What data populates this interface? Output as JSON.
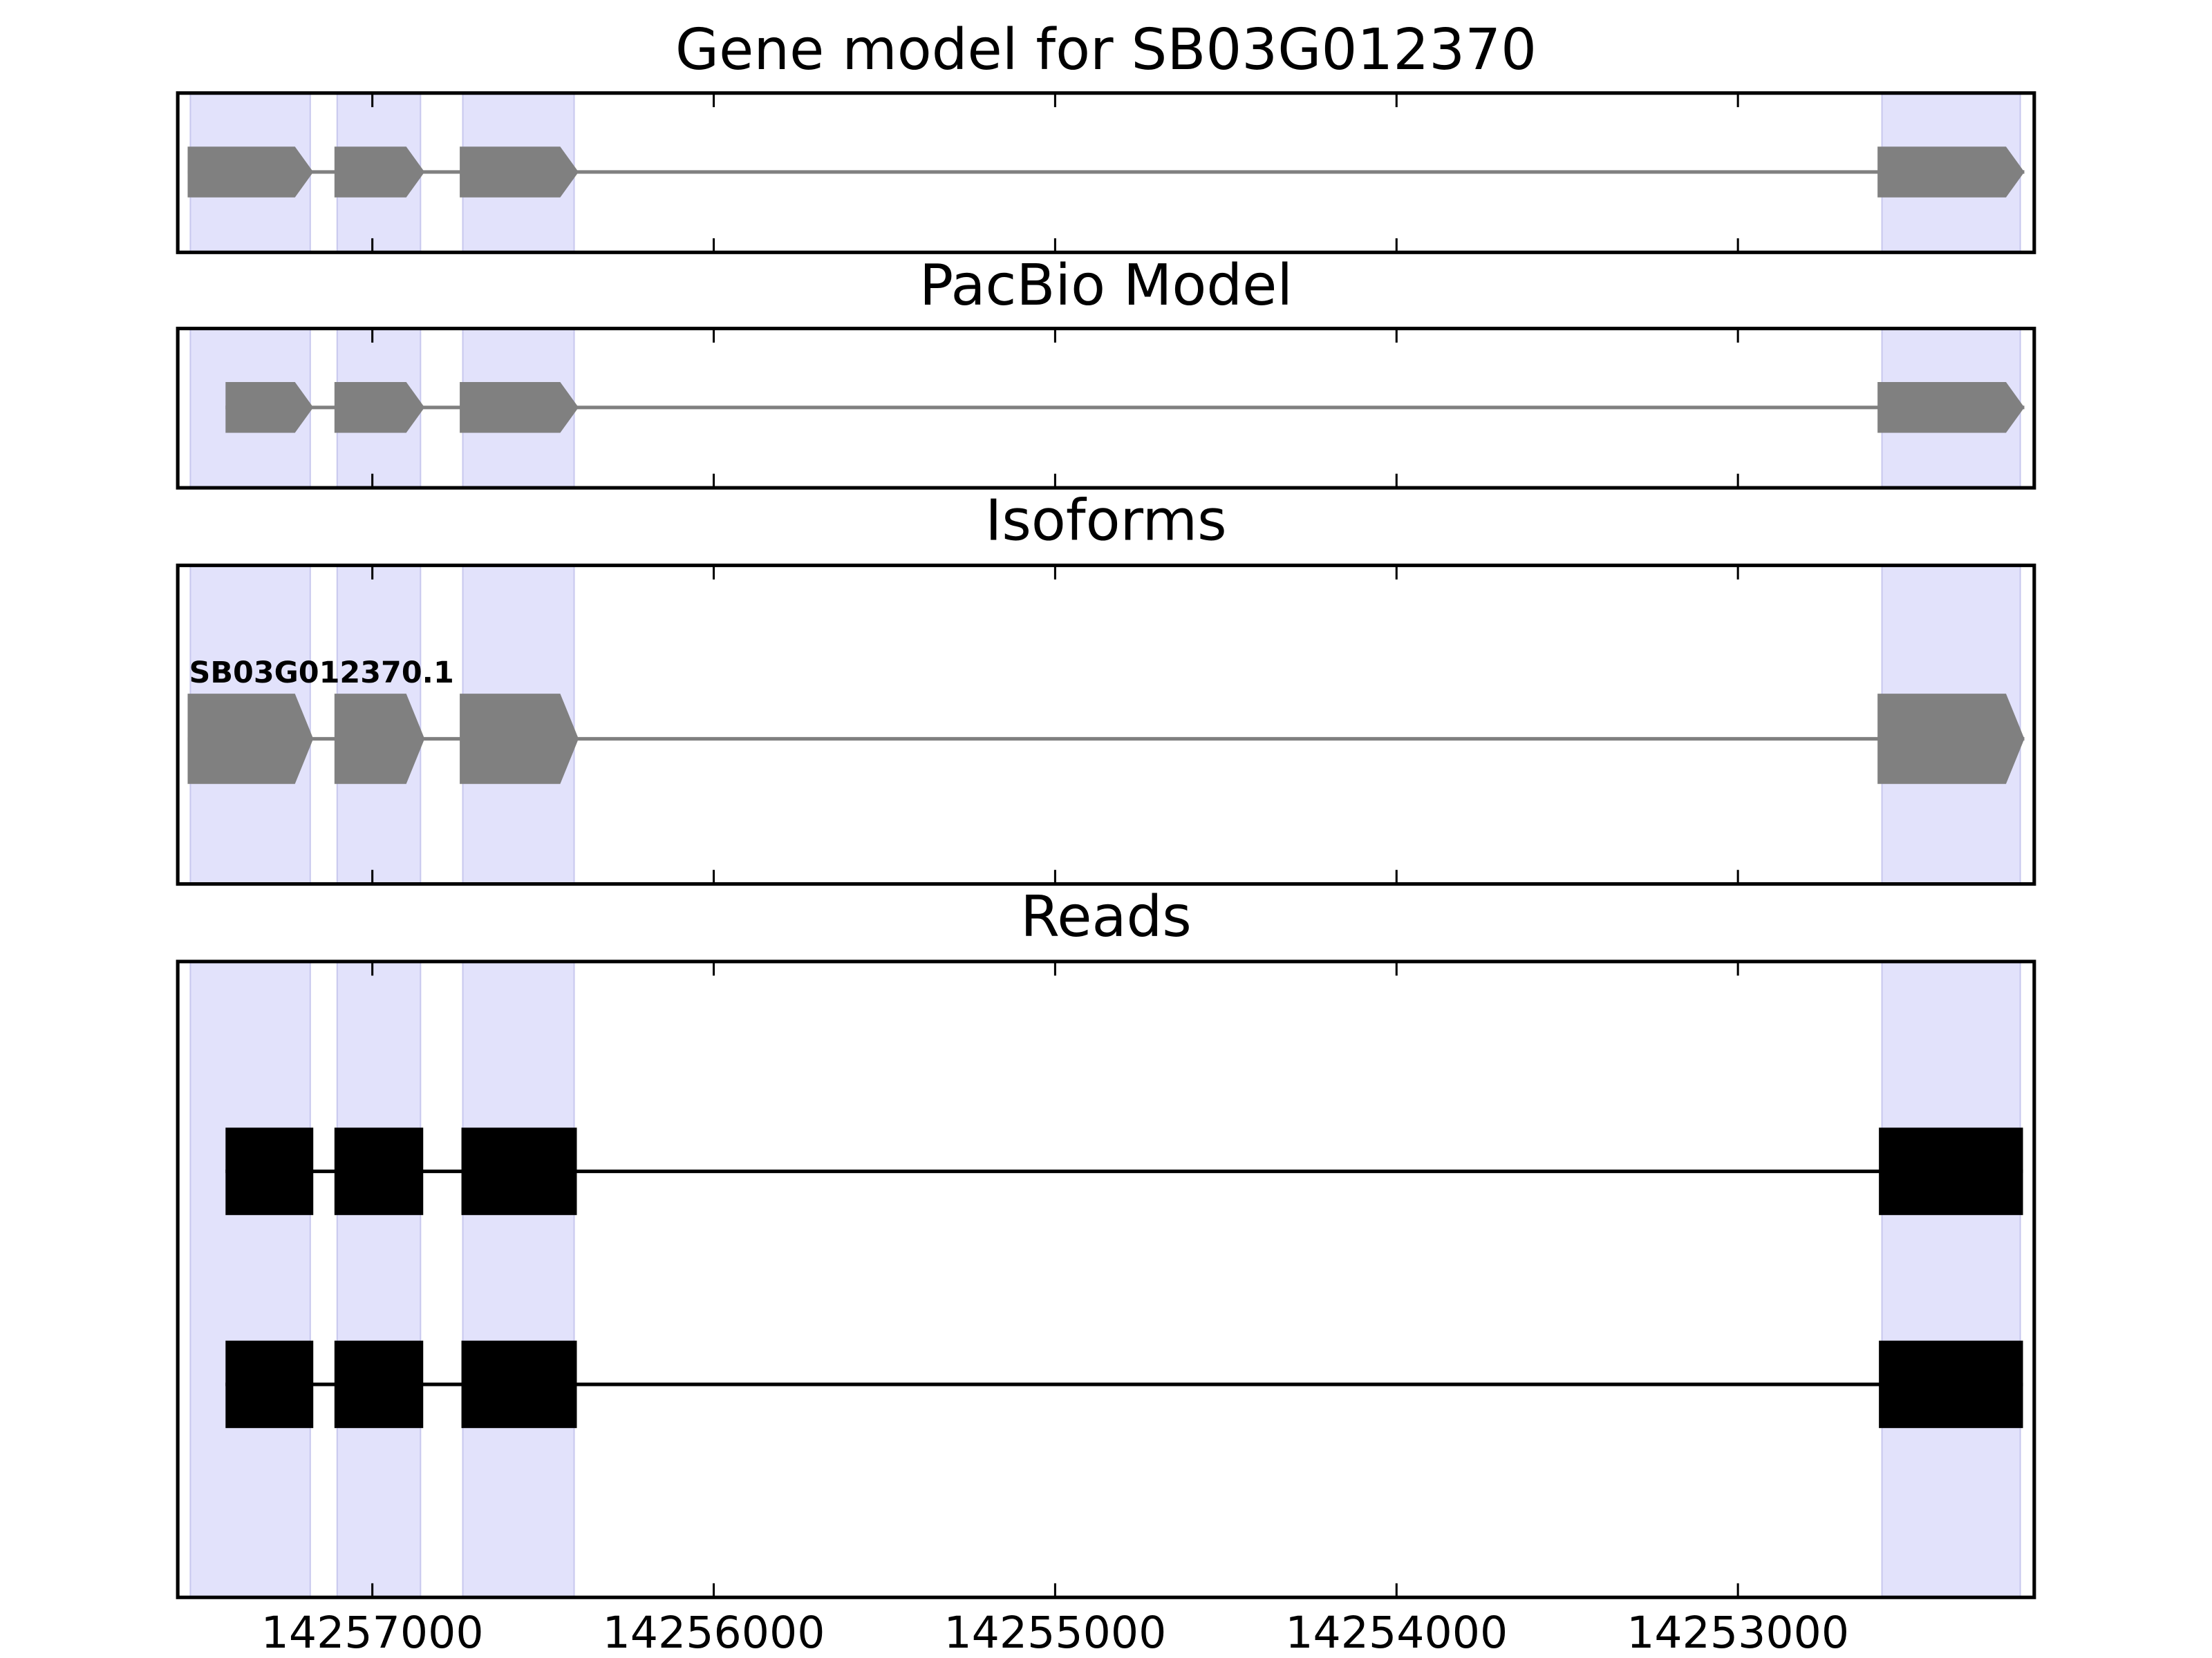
{
  "chart_data": [
    {
      "type": "gene-model",
      "title": "Gene model for SB03G012370",
      "xlim": [
        14257570,
        14252132
      ],
      "xticks": [
        14257000,
        14256000,
        14255000,
        14254000,
        14253000
      ],
      "highlights": [
        [
          14257533,
          14257182
        ],
        [
          14257103,
          14256859
        ],
        [
          14256735,
          14256409
        ],
        [
          14252578,
          14252173
        ]
      ],
      "highlight_color": "#e2e2fb",
      "color": "#808080",
      "features": [
        {
          "exons": [
            [
              14257541,
              14257173
            ],
            [
              14257111,
              14256847
            ],
            [
              14256744,
              14256396
            ],
            [
              14252591,
              14252161
            ]
          ]
        }
      ]
    },
    {
      "type": "gene-model",
      "title": "PacBio Model",
      "xlim": [
        14257570,
        14252132
      ],
      "xticks": [
        14257000,
        14256000,
        14255000,
        14254000,
        14253000
      ],
      "highlights": [
        [
          14257533,
          14257182
        ],
        [
          14257103,
          14256859
        ],
        [
          14256735,
          14256409
        ],
        [
          14252578,
          14252173
        ]
      ],
      "highlight_color": "#e2e2fb",
      "color": "#808080",
      "features": [
        {
          "exons": [
            [
              14257430,
              14257173
            ],
            [
              14257111,
              14256847
            ],
            [
              14256744,
              14256396
            ],
            [
              14252591,
              14252161
            ]
          ]
        }
      ]
    },
    {
      "type": "isoforms",
      "title": "Isoforms",
      "xlim": [
        14257570,
        14252132
      ],
      "xticks": [
        14257000,
        14256000,
        14255000,
        14254000,
        14253000
      ],
      "highlights": [
        [
          14257533,
          14257182
        ],
        [
          14257103,
          14256859
        ],
        [
          14256735,
          14256409
        ],
        [
          14252578,
          14252173
        ]
      ],
      "highlight_color": "#e2e2fb",
      "color": "#808080",
      "features": [
        {
          "name": "SB03G012370.1",
          "exons": [
            [
              14257541,
              14257173
            ],
            [
              14257111,
              14256847
            ],
            [
              14256744,
              14256396
            ],
            [
              14252591,
              14252161
            ]
          ]
        }
      ]
    },
    {
      "type": "reads",
      "title": "Reads",
      "xlim": [
        14257570,
        14252132
      ],
      "xticks": [
        14257000,
        14256000,
        14255000,
        14254000,
        14253000
      ],
      "highlights": [
        [
          14257533,
          14257182
        ],
        [
          14257103,
          14256859
        ],
        [
          14256735,
          14256409
        ],
        [
          14252578,
          14252173
        ]
      ],
      "highlight_color": "#e2e2fb",
      "color": "#000000",
      "features": [
        {
          "exons": [
            [
              14257430,
              14257173
            ],
            [
              14257111,
              14256851
            ],
            [
              14256739,
              14256401
            ],
            [
              14252587,
              14252165
            ]
          ]
        },
        {
          "exons": [
            [
              14257430,
              14257173
            ],
            [
              14257111,
              14256851
            ],
            [
              14256739,
              14256401
            ],
            [
              14252587,
              14252165
            ]
          ]
        }
      ]
    }
  ]
}
